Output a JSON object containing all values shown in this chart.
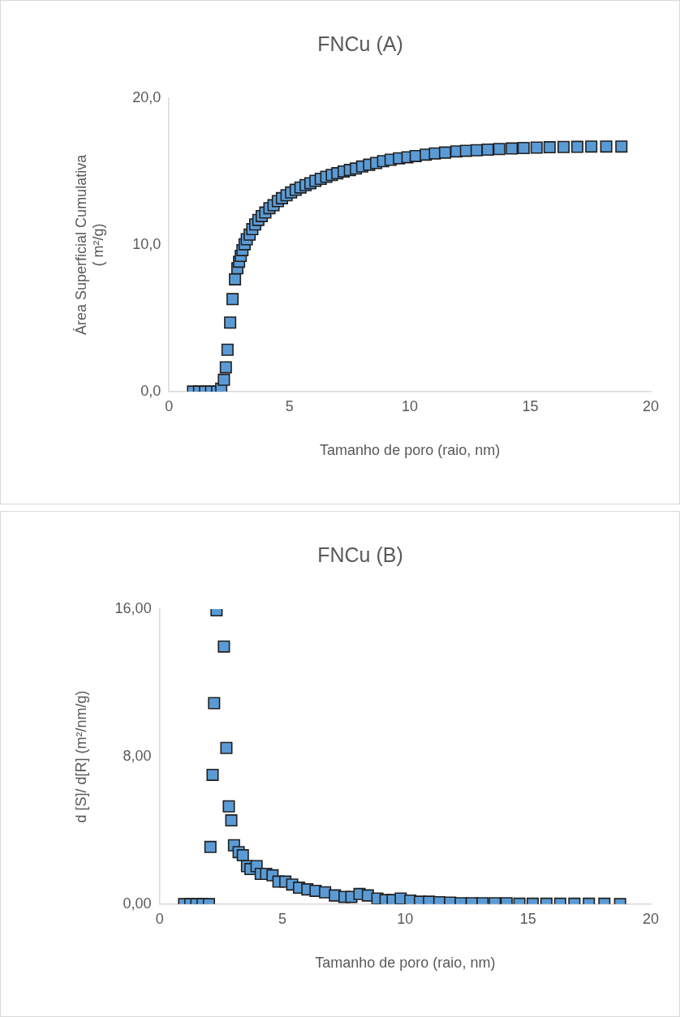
{
  "chart_data": [
    {
      "type": "scatter",
      "title": "FNCu (A)",
      "xlabel": "Tamanho de poro (raio, nm)",
      "ylabel": "Área Superficial Cumulativa\n( m²/g)",
      "color": "#5b9bd5",
      "marker": "square",
      "xlim": [
        0,
        20
      ],
      "xticks": [
        0,
        5,
        10,
        15,
        20
      ],
      "ylim": [
        0,
        20
      ],
      "yticks": [
        {
          "value": 0,
          "label": "0,0"
        },
        {
          "value": 10,
          "label": "10,0"
        },
        {
          "value": 20,
          "label": "20,0"
        }
      ],
      "x": [
        1.0,
        1.25,
        1.5,
        1.75,
        2.0,
        2.17,
        2.28,
        2.36,
        2.43,
        2.54,
        2.64,
        2.74,
        2.84,
        2.91,
        2.98,
        3.05,
        3.14,
        3.23,
        3.35,
        3.46,
        3.58,
        3.71,
        3.85,
        4.0,
        4.17,
        4.34,
        4.52,
        4.69,
        4.88,
        5.07,
        5.26,
        5.46,
        5.67,
        5.87,
        6.08,
        6.3,
        6.53,
        6.76,
        6.99,
        7.25,
        7.51,
        7.76,
        8.02,
        8.31,
        8.6,
        8.89,
        9.2,
        9.55,
        9.9,
        10.24,
        10.66,
        11.04,
        11.46,
        11.93,
        12.33,
        12.77,
        13.23,
        13.71,
        14.23,
        14.72,
        15.26,
        15.8,
        16.38,
        16.95,
        17.53,
        18.15,
        18.78
      ],
      "values": [
        0,
        0,
        0,
        0,
        0,
        0.2,
        0.8,
        1.65,
        2.85,
        4.7,
        6.3,
        7.65,
        8.4,
        8.85,
        9.25,
        9.64,
        10.04,
        10.38,
        10.7,
        11.07,
        11.39,
        11.7,
        11.96,
        12.2,
        12.5,
        12.7,
        12.98,
        13.18,
        13.38,
        13.57,
        13.75,
        13.91,
        14.07,
        14.2,
        14.36,
        14.5,
        14.64,
        14.76,
        14.88,
        15.0,
        15.1,
        15.2,
        15.34,
        15.46,
        15.58,
        15.7,
        15.8,
        15.9,
        15.97,
        16.05,
        16.15,
        16.23,
        16.29,
        16.37,
        16.41,
        16.45,
        16.49,
        16.53,
        16.57,
        16.6,
        16.63,
        16.65,
        16.67,
        16.68,
        16.7,
        16.7,
        16.7
      ]
    },
    {
      "type": "scatter",
      "title": "FNCu (B)",
      "xlabel": "Tamanho de poro (raio, nm)",
      "ylabel": "d [S]/ d[R] (m²/nm/g)",
      "color": "#5b9bd5",
      "marker": "square",
      "xlim": [
        0,
        20
      ],
      "xticks": [
        0,
        5,
        10,
        15,
        20
      ],
      "ylim": [
        0,
        16
      ],
      "yticks": [
        {
          "value": 0,
          "label": "0,00"
        },
        {
          "value": 8,
          "label": "8,00"
        },
        {
          "value": 16,
          "label": "16,00"
        }
      ],
      "x": [
        1.0,
        1.25,
        1.5,
        1.75,
        2.01,
        2.07,
        2.16,
        2.22,
        2.32,
        2.62,
        2.72,
        2.82,
        2.92,
        3.03,
        3.22,
        3.39,
        3.56,
        3.7,
        3.95,
        4.12,
        4.34,
        4.6,
        4.84,
        5.12,
        5.4,
        5.68,
        6.02,
        6.35,
        6.74,
        7.14,
        7.53,
        7.81,
        8.14,
        8.48,
        8.87,
        9.2,
        9.49,
        9.82,
        10.21,
        10.6,
        10.97,
        11.39,
        11.83,
        12.26,
        12.71,
        13.15,
        13.65,
        14.13,
        14.65,
        15.19,
        15.75,
        16.31,
        16.89,
        17.48,
        18.11,
        18.75
      ],
      "values": [
        0,
        0,
        0,
        0,
        0,
        3.1,
        7.01,
        10.9,
        15.93,
        13.97,
        8.47,
        5.3,
        4.54,
        3.19,
        2.82,
        2.65,
        2.06,
        1.9,
        2.06,
        1.64,
        1.64,
        1.56,
        1.22,
        1.22,
        1.06,
        0.89,
        0.8,
        0.72,
        0.64,
        0.47,
        0.39,
        0.39,
        0.55,
        0.47,
        0.3,
        0.22,
        0.22,
        0.3,
        0.19,
        0.13,
        0.13,
        0.1,
        0.08,
        0.05,
        0.05,
        0.05,
        0.05,
        0.05,
        0.02,
        0.02,
        0.02,
        0.02,
        0.02,
        0.02,
        0.02,
        0
      ]
    }
  ]
}
